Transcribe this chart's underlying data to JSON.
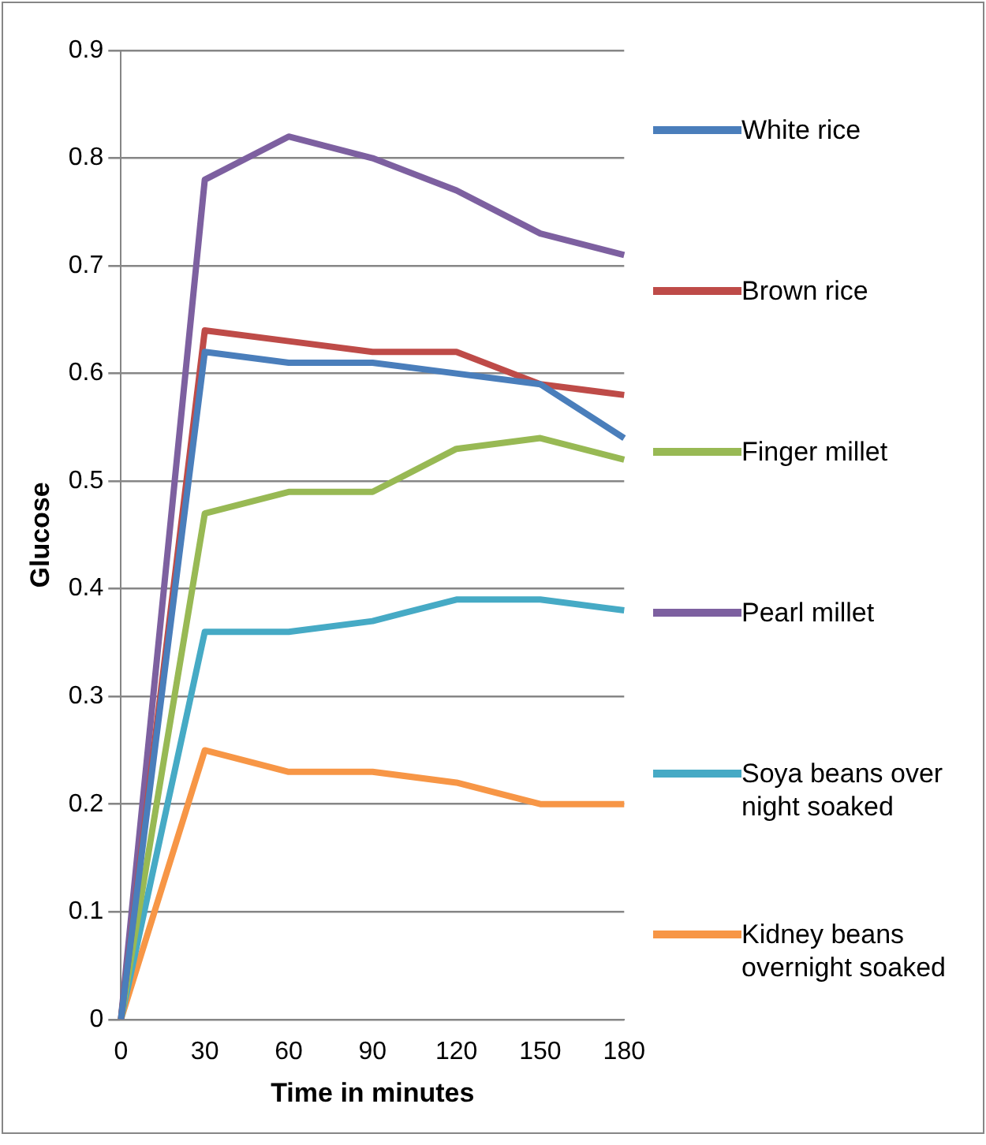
{
  "chart_data": {
    "type": "line",
    "xlabel": "Time in minutes",
    "ylabel": "Glucose",
    "categories": [
      "0",
      "30",
      "60",
      "90",
      "120",
      "150",
      "180"
    ],
    "series": [
      {
        "name": "White rice",
        "color": "#4a7ebb",
        "values": [
          0,
          0.62,
          0.61,
          0.61,
          0.6,
          0.59,
          0.54
        ]
      },
      {
        "name": "Brown rice",
        "color": "#be4b48",
        "values": [
          0,
          0.64,
          0.63,
          0.62,
          0.62,
          0.59,
          0.58
        ]
      },
      {
        "name": "Finger millet",
        "color": "#98b954",
        "values": [
          0,
          0.47,
          0.49,
          0.49,
          0.53,
          0.54,
          0.52
        ]
      },
      {
        "name": "Pearl millet",
        "color": "#7d60a0",
        "values": [
          0,
          0.78,
          0.82,
          0.8,
          0.77,
          0.73,
          0.71
        ]
      },
      {
        "name": "Soya beans over night soaked",
        "color": "#46aac5",
        "values": [
          0,
          0.36,
          0.36,
          0.37,
          0.39,
          0.39,
          0.38
        ]
      },
      {
        "name": "Kidney beans overnight soaked",
        "color": "#f79646",
        "values": [
          0,
          0.25,
          0.23,
          0.23,
          0.22,
          0.2,
          0.2
        ]
      }
    ],
    "ylim": [
      0,
      0.9
    ],
    "yticks": [
      0,
      0.1,
      0.2,
      0.3,
      0.4,
      0.5,
      0.6,
      0.7,
      0.8,
      0.9
    ],
    "grid": "y",
    "legend": "right",
    "marker": "none"
  }
}
